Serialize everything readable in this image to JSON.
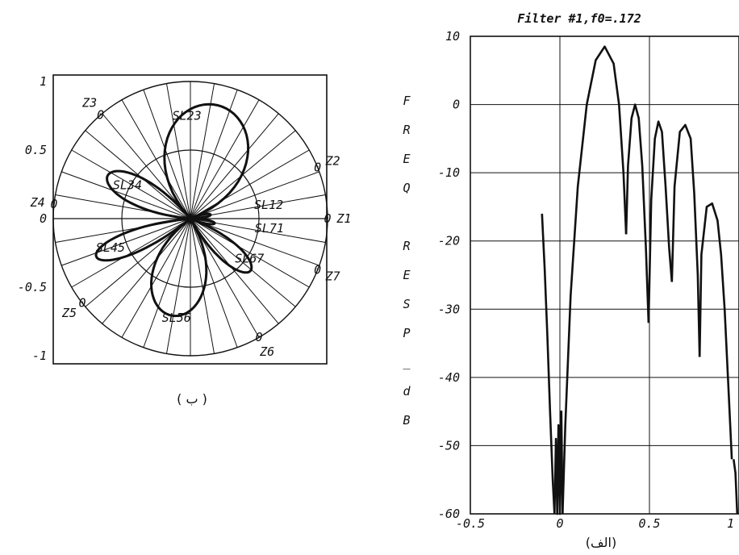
{
  "chart_data": [
    {
      "type": "polar",
      "caption": "( ب )",
      "y_ticks": [
        "1",
        "0.5",
        "0",
        "-0.5",
        "-1"
      ],
      "tick_values": [
        1,
        0.5,
        0,
        -0.5,
        -1
      ],
      "zero_labels": [
        {
          "text": "Z1",
          "angle_deg": 0
        },
        {
          "text": "Z2",
          "angle_deg": 22
        },
        {
          "text": "Z3",
          "angle_deg": 131
        },
        {
          "text": "Z4",
          "angle_deg": 174
        },
        {
          "text": "Z5",
          "angle_deg": 218
        },
        {
          "text": "Z6",
          "angle_deg": 300
        },
        {
          "text": "Z7",
          "angle_deg": 338
        }
      ],
      "lobe_labels": [
        "SL23",
        "SL34",
        "SL12",
        "SL71",
        "SL45",
        "SL67",
        "SL56"
      ],
      "zero_marker": "0",
      "inner_circle_radius": 0.5,
      "lobes": [
        {
          "name": "SL23",
          "from_deg": 22,
          "to_deg": 131,
          "peak": 0.85
        },
        {
          "name": "SL34",
          "from_deg": 131,
          "to_deg": 174,
          "peak": 0.68
        },
        {
          "name": "SL45",
          "from_deg": 186,
          "to_deg": 218,
          "peak": 0.74
        },
        {
          "name": "SL56",
          "from_deg": 218,
          "to_deg": 300,
          "peak": 0.72
        },
        {
          "name": "SL67",
          "from_deg": 300,
          "to_deg": 338,
          "peak": 0.58
        },
        {
          "name": "SL71",
          "from_deg": 338,
          "to_deg": 360,
          "peak": 0.18
        },
        {
          "name": "SL12",
          "from_deg": 0,
          "to_deg": 22,
          "peak": 0.15
        }
      ]
    },
    {
      "type": "line",
      "title": "Filter #1,f0=.172",
      "ylabel_letters": [
        "F",
        "R",
        "E",
        "Q",
        "",
        "R",
        "E",
        "S",
        "P",
        "_",
        "d",
        "B"
      ],
      "caption": "(الف)",
      "xlim": [
        -0.5,
        1.0
      ],
      "ylim": [
        -60,
        10
      ],
      "x_ticks": [
        "-0.5",
        "0",
        "0.5",
        "1"
      ],
      "x_tick_values": [
        -0.5,
        0,
        0.5,
        1.0
      ],
      "y_ticks": [
        "10",
        "0",
        "-10",
        "-20",
        "-30",
        "-40",
        "-50",
        "-60"
      ],
      "y_tick_values": [
        10,
        0,
        -10,
        -20,
        -30,
        -40,
        -50,
        -60
      ],
      "vlines": [
        0,
        0.5
      ],
      "series": [
        {
          "points": [
            [
              -0.1,
              -16
            ],
            [
              -0.085,
              -24
            ],
            [
              -0.07,
              -34
            ],
            [
              -0.055,
              -45
            ],
            [
              -0.04,
              -55
            ],
            [
              -0.03,
              -60
            ]
          ]
        },
        {
          "points": [
            [
              -0.03,
              -60
            ],
            [
              -0.022,
              -49
            ],
            [
              -0.015,
              -60
            ],
            [
              -0.008,
              -47
            ],
            [
              0.0,
              -60
            ],
            [
              0.008,
              -45
            ],
            [
              0.015,
              -60
            ]
          ]
        },
        {
          "points": [
            [
              0.015,
              -60
            ],
            [
              0.03,
              -47
            ],
            [
              0.06,
              -28
            ],
            [
              0.1,
              -12
            ],
            [
              0.15,
              0
            ],
            [
              0.2,
              6.5
            ],
            [
              0.25,
              8.5
            ],
            [
              0.3,
              6
            ],
            [
              0.33,
              0
            ],
            [
              0.355,
              -10
            ],
            [
              0.37,
              -19
            ]
          ]
        },
        {
          "points": [
            [
              0.37,
              -19
            ],
            [
              0.38,
              -9
            ],
            [
              0.4,
              -2
            ],
            [
              0.42,
              0
            ],
            [
              0.44,
              -2
            ],
            [
              0.46,
              -9
            ],
            [
              0.48,
              -21
            ],
            [
              0.495,
              -32
            ]
          ]
        },
        {
          "points": [
            [
              0.495,
              -32
            ],
            [
              0.51,
              -14
            ],
            [
              0.53,
              -5
            ],
            [
              0.55,
              -2.5
            ],
            [
              0.57,
              -4
            ],
            [
              0.59,
              -12
            ],
            [
              0.61,
              -21
            ],
            [
              0.625,
              -26
            ]
          ]
        },
        {
          "points": [
            [
              0.625,
              -26
            ],
            [
              0.64,
              -12
            ],
            [
              0.67,
              -4
            ],
            [
              0.7,
              -3
            ],
            [
              0.73,
              -5
            ],
            [
              0.75,
              -13
            ],
            [
              0.77,
              -25
            ],
            [
              0.78,
              -37
            ]
          ]
        },
        {
          "points": [
            [
              0.78,
              -37
            ],
            [
              0.79,
              -22
            ],
            [
              0.82,
              -15
            ],
            [
              0.85,
              -14.5
            ],
            [
              0.88,
              -17
            ],
            [
              0.9,
              -22
            ],
            [
              0.92,
              -30
            ],
            [
              0.94,
              -41
            ],
            [
              0.96,
              -52
            ]
          ]
        },
        {
          "points": [
            [
              0.97,
              -52
            ],
            [
              0.98,
              -54
            ],
            [
              0.99,
              -60
            ]
          ]
        }
      ]
    }
  ]
}
